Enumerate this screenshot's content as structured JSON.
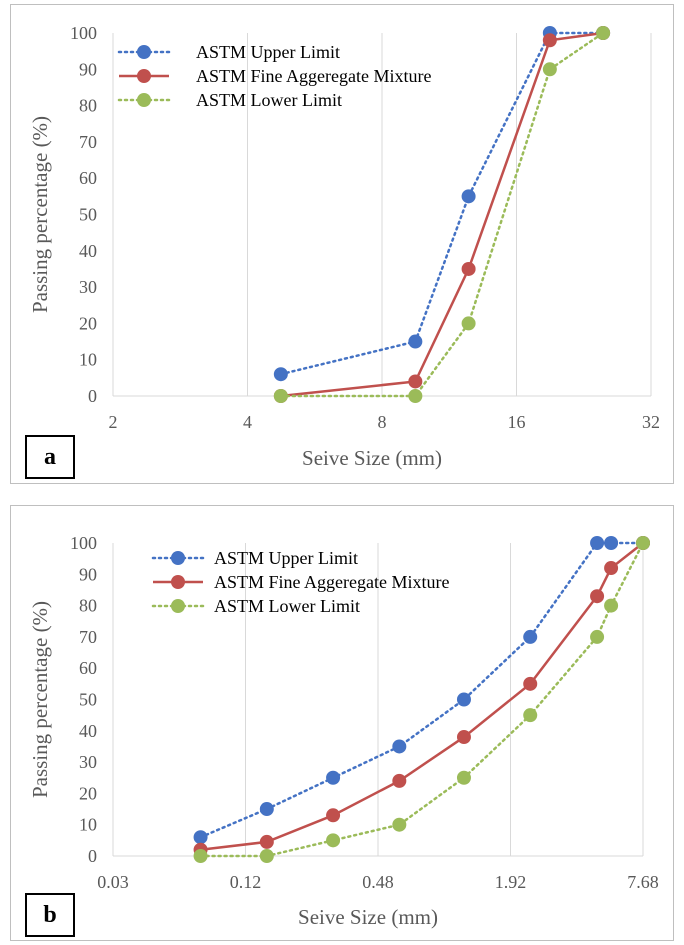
{
  "chart_data": [
    {
      "type": "line",
      "panel_label": "a",
      "xlabel": "Seive Size (mm)",
      "ylabel": "Passing percentage (%)",
      "x_scale": "log2",
      "xlim": [
        2,
        32
      ],
      "ylim": [
        0,
        100
      ],
      "x_ticks": [
        "2",
        "4",
        "8",
        "16",
        "32"
      ],
      "y_ticks": [
        "0",
        "10",
        "20",
        "30",
        "40",
        "50",
        "60",
        "70",
        "80",
        "90",
        "100"
      ],
      "grid": "vertical",
      "legend_position": "top-left",
      "series": [
        {
          "name": "ASTM Upper Limit",
          "style": "dotted",
          "color": "#4472c4",
          "x": [
            4.75,
            9.5,
            12.5,
            19,
            25
          ],
          "y": [
            6,
            15,
            55,
            100,
            100
          ]
        },
        {
          "name": "ASTM Fine Aggeregate Mixture",
          "style": "solid",
          "color": "#c0504d",
          "x": [
            4.75,
            9.5,
            12.5,
            19,
            25
          ],
          "y": [
            0,
            4,
            35,
            98,
            100
          ]
        },
        {
          "name": "ASTM Lower Limit",
          "style": "dotted",
          "color": "#9bbb59",
          "x": [
            4.75,
            9.5,
            12.5,
            19,
            25
          ],
          "y": [
            0,
            0,
            20,
            90,
            100
          ]
        }
      ]
    },
    {
      "type": "line",
      "panel_label": "b",
      "xlabel": "Seive Size (mm)",
      "ylabel": "Passing percentage (%)",
      "x_scale": "log2",
      "xlim": [
        0.03,
        7.68
      ],
      "ylim": [
        0,
        100
      ],
      "x_ticks": [
        "0.03",
        "0.12",
        "0.48",
        "1.92",
        "7.68"
      ],
      "y_ticks": [
        "0",
        "10",
        "20",
        "30",
        "40",
        "50",
        "60",
        "70",
        "80",
        "90",
        "100"
      ],
      "grid": "vertical",
      "legend_position": "top-left",
      "series": [
        {
          "name": "ASTM Upper Limit",
          "style": "dotted",
          "color": "#4472c4",
          "x": [
            0.075,
            0.15,
            0.3,
            0.6,
            1.18,
            2.36,
            4.75,
            5.5,
            7.68
          ],
          "y": [
            6,
            15,
            25,
            35,
            50,
            70,
            100,
            100,
            100
          ]
        },
        {
          "name": "ASTM Fine Aggeregate Mixture",
          "style": "solid",
          "color": "#c0504d",
          "x": [
            0.075,
            0.15,
            0.3,
            0.6,
            1.18,
            2.36,
            4.75,
            5.5,
            7.68
          ],
          "y": [
            2,
            4.5,
            13,
            24,
            38,
            55,
            83,
            92,
            100
          ]
        },
        {
          "name": "ASTM Lower Limit",
          "style": "dotted",
          "color": "#9bbb59",
          "x": [
            0.075,
            0.15,
            0.3,
            0.6,
            1.18,
            2.36,
            4.75,
            5.5,
            7.68
          ],
          "y": [
            0,
            0,
            5,
            10,
            25,
            45,
            70,
            80,
            100
          ]
        }
      ]
    }
  ]
}
